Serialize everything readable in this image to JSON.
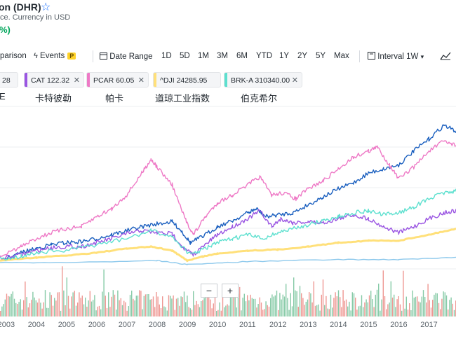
{
  "header": {
    "title": "on (DHR)",
    "subtitle": "ce. Currency in USD",
    "change_pct": "%)"
  },
  "toolbar": {
    "comparison": "parison",
    "events": "Events",
    "events_badge": "P",
    "date_range": "Date Range",
    "ranges": [
      "1D",
      "5D",
      "1M",
      "3M",
      "6M",
      "YTD",
      "1Y",
      "2Y",
      "5Y",
      "Max"
    ],
    "interval": "Interval",
    "interval_value": "1W"
  },
  "comparisons": [
    {
      "label": "28",
      "color": "#0f69ff",
      "cn": "E"
    },
    {
      "label": "CAT 122.32",
      "color": "#9a55e2",
      "cn": "卡特彼勒"
    },
    {
      "label": "PCAR 60.05",
      "color": "#ee79c6",
      "cn": "帕卡"
    },
    {
      "label": "^DJI 24285.95",
      "color": "#ffe07a",
      "cn": "道琼工业指数"
    },
    {
      "label": "BRK-A 310340.00",
      "color": "#5de0cf",
      "cn": "伯克希尔"
    }
  ],
  "zoom": {
    "minus": "−",
    "plus": "+"
  },
  "chart_data": {
    "type": "line",
    "xaxis_labels": [
      "2003",
      "2004",
      "2005",
      "2006",
      "2007",
      "2008",
      "2009",
      "2010",
      "2011",
      "2012",
      "2013",
      "2014",
      "2015",
      "2016",
      "2017"
    ],
    "x_range": [
      2002.8,
      2017.9
    ],
    "grid": true,
    "series": [
      {
        "color": "#1a5fbf",
        "points": [
          [
            2002.8,
            -6
          ],
          [
            2003.5,
            2
          ],
          [
            2004.0,
            6
          ],
          [
            2004.5,
            10
          ],
          [
            2005.0,
            12
          ],
          [
            2005.5,
            13
          ],
          [
            2006.0,
            16
          ],
          [
            2006.5,
            20
          ],
          [
            2007.0,
            24
          ],
          [
            2007.5,
            28
          ],
          [
            2008.0,
            31
          ],
          [
            2008.5,
            33
          ],
          [
            2008.8,
            24
          ],
          [
            2009.1,
            12
          ],
          [
            2009.5,
            18
          ],
          [
            2010.0,
            28
          ],
          [
            2010.5,
            34
          ],
          [
            2011.0,
            42
          ],
          [
            2011.3,
            46
          ],
          [
            2011.6,
            38
          ],
          [
            2012.0,
            40
          ],
          [
            2012.5,
            42
          ],
          [
            2013.0,
            50
          ],
          [
            2013.5,
            58
          ],
          [
            2014.0,
            66
          ],
          [
            2014.5,
            72
          ],
          [
            2015.0,
            82
          ],
          [
            2015.5,
            86
          ],
          [
            2016.0,
            90
          ],
          [
            2016.5,
            104
          ],
          [
            2017.0,
            116
          ],
          [
            2017.5,
            130
          ],
          [
            2017.9,
            124
          ]
        ]
      },
      {
        "color": "#9a55e2",
        "points": [
          [
            2002.8,
            -4
          ],
          [
            2003.5,
            0
          ],
          [
            2004.0,
            4
          ],
          [
            2004.5,
            7
          ],
          [
            2005.0,
            8
          ],
          [
            2005.5,
            8
          ],
          [
            2006.0,
            12
          ],
          [
            2006.5,
            16
          ],
          [
            2007.0,
            21
          ],
          [
            2007.5,
            24
          ],
          [
            2008.0,
            22
          ],
          [
            2008.5,
            21
          ],
          [
            2008.9,
            6
          ],
          [
            2009.2,
            0
          ],
          [
            2009.6,
            10
          ],
          [
            2010.0,
            20
          ],
          [
            2010.5,
            28
          ],
          [
            2011.0,
            36
          ],
          [
            2011.4,
            44
          ],
          [
            2011.8,
            28
          ],
          [
            2012.1,
            36
          ],
          [
            2012.5,
            32
          ],
          [
            2013.0,
            33
          ],
          [
            2013.5,
            32
          ],
          [
            2014.0,
            36
          ],
          [
            2014.5,
            40
          ],
          [
            2015.0,
            36
          ],
          [
            2015.5,
            28
          ],
          [
            2016.0,
            22
          ],
          [
            2016.5,
            28
          ],
          [
            2017.0,
            36
          ],
          [
            2017.5,
            42
          ],
          [
            2017.9,
            44
          ]
        ]
      },
      {
        "color": "#ee79c6",
        "points": [
          [
            2002.8,
            -2
          ],
          [
            2003.5,
            8
          ],
          [
            2004.0,
            16
          ],
          [
            2004.5,
            22
          ],
          [
            2005.0,
            26
          ],
          [
            2005.5,
            28
          ],
          [
            2006.0,
            38
          ],
          [
            2006.5,
            46
          ],
          [
            2007.0,
            60
          ],
          [
            2007.5,
            82
          ],
          [
            2007.8,
            96
          ],
          [
            2008.0,
            88
          ],
          [
            2008.5,
            70
          ],
          [
            2008.9,
            38
          ],
          [
            2009.2,
            20
          ],
          [
            2009.6,
            38
          ],
          [
            2010.0,
            52
          ],
          [
            2010.5,
            60
          ],
          [
            2011.0,
            70
          ],
          [
            2011.4,
            78
          ],
          [
            2011.8,
            60
          ],
          [
            2012.2,
            62
          ],
          [
            2012.6,
            56
          ],
          [
            2013.0,
            66
          ],
          [
            2013.5,
            74
          ],
          [
            2014.0,
            86
          ],
          [
            2014.5,
            98
          ],
          [
            2015.0,
            104
          ],
          [
            2015.3,
            108
          ],
          [
            2015.7,
            90
          ],
          [
            2016.0,
            76
          ],
          [
            2016.5,
            88
          ],
          [
            2017.0,
            104
          ],
          [
            2017.5,
            114
          ],
          [
            2017.9,
            110
          ]
        ]
      },
      {
        "color": "#ffe07a",
        "points": [
          [
            2002.8,
            -6
          ],
          [
            2004.0,
            -3
          ],
          [
            2005.0,
            -1
          ],
          [
            2006.0,
            2
          ],
          [
            2007.0,
            6
          ],
          [
            2007.8,
            8
          ],
          [
            2008.5,
            4
          ],
          [
            2009.0,
            -6
          ],
          [
            2009.5,
            -2
          ],
          [
            2010.0,
            1
          ],
          [
            2011.0,
            4
          ],
          [
            2012.0,
            5
          ],
          [
            2013.0,
            8
          ],
          [
            2014.0,
            12
          ],
          [
            2015.0,
            14
          ],
          [
            2016.0,
            14
          ],
          [
            2017.0,
            20
          ],
          [
            2017.9,
            26
          ]
        ]
      },
      {
        "color": "#5de0cf",
        "points": [
          [
            2002.8,
            -4
          ],
          [
            2003.5,
            -2
          ],
          [
            2004.0,
            2
          ],
          [
            2005.0,
            4
          ],
          [
            2006.0,
            10
          ],
          [
            2007.0,
            16
          ],
          [
            2007.8,
            24
          ],
          [
            2008.5,
            18
          ],
          [
            2009.1,
            0
          ],
          [
            2009.6,
            6
          ],
          [
            2010.0,
            12
          ],
          [
            2010.5,
            16
          ],
          [
            2011.0,
            20
          ],
          [
            2011.5,
            16
          ],
          [
            2012.0,
            22
          ],
          [
            2012.5,
            26
          ],
          [
            2013.0,
            30
          ],
          [
            2013.5,
            34
          ],
          [
            2014.0,
            38
          ],
          [
            2014.5,
            42
          ],
          [
            2015.0,
            44
          ],
          [
            2015.5,
            40
          ],
          [
            2016.0,
            42
          ],
          [
            2016.5,
            48
          ],
          [
            2017.0,
            56
          ],
          [
            2017.5,
            62
          ],
          [
            2017.9,
            64
          ]
        ]
      },
      {
        "color": "#8ec9ec",
        "points": [
          [
            2002.8,
            -8
          ],
          [
            2005.0,
            -8
          ],
          [
            2008.0,
            -6
          ],
          [
            2009.0,
            -10
          ],
          [
            2011.0,
            -7
          ],
          [
            2014.0,
            -5
          ],
          [
            2016.0,
            -5
          ],
          [
            2017.9,
            -3
          ]
        ]
      }
    ],
    "y_range": [
      -20,
      170
    ]
  }
}
